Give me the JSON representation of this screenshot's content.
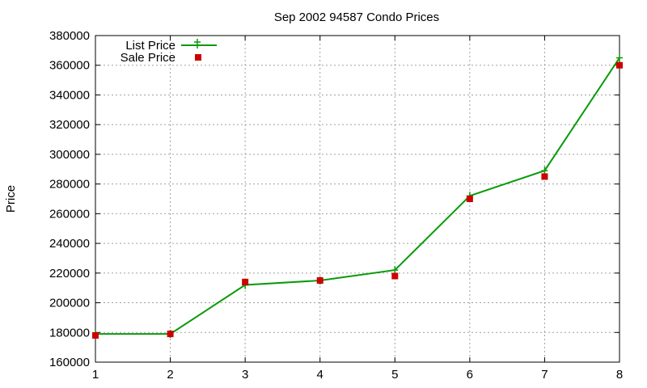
{
  "chart_data": {
    "type": "line",
    "title": "Sep 2002 94587 Condo Prices",
    "xlabel": "",
    "ylabel": "Price",
    "x": [
      1,
      2,
      3,
      4,
      5,
      6,
      7,
      8
    ],
    "xlim": [
      1,
      8
    ],
    "ylim": [
      160000,
      380000
    ],
    "yticks": [
      160000,
      180000,
      200000,
      220000,
      240000,
      260000,
      280000,
      300000,
      320000,
      340000,
      360000,
      380000
    ],
    "xticks": [
      1,
      2,
      3,
      4,
      5,
      6,
      7,
      8
    ],
    "grid": true,
    "legend_position": "top-left",
    "series": [
      {
        "name": "List Price",
        "style": "line+plus",
        "color": "#0a9a0a",
        "values": [
          179000,
          179000,
          212000,
          215000,
          222000,
          272000,
          289000,
          365000
        ]
      },
      {
        "name": "Sale Price",
        "style": "square-points",
        "color": "#cc0000",
        "values": [
          178000,
          179000,
          214000,
          215000,
          218000,
          270000,
          285000,
          360000
        ]
      }
    ]
  }
}
